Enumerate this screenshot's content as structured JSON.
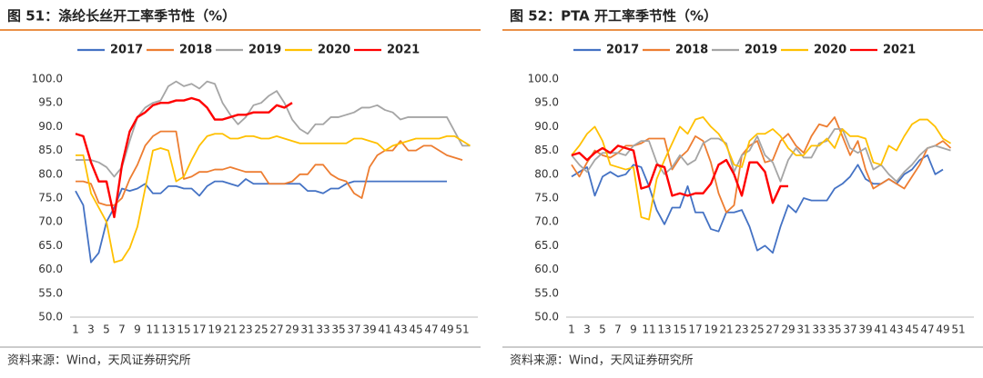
{
  "chart_data": [
    {
      "type": "line",
      "title": "图 51：涤纶长丝开工率季节性（%）",
      "source": "资料来源：Wind，天风证券研究所",
      "categories": [
        1,
        null,
        3,
        null,
        5,
        null,
        7,
        null,
        9,
        null,
        11,
        null,
        13,
        null,
        15,
        null,
        17,
        null,
        19,
        null,
        21,
        null,
        23,
        null,
        25,
        null,
        27,
        null,
        29,
        null,
        31,
        null,
        33,
        null,
        35,
        null,
        37,
        null,
        39,
        null,
        41,
        null,
        43,
        null,
        45,
        null,
        47,
        null,
        49,
        null,
        51,
        null
      ],
      "ylim": [
        50,
        100
      ],
      "yticks": [
        {
          "value": 50,
          "label": "50.0"
        },
        {
          "value": 55,
          "label": "55.0"
        },
        {
          "value": 60,
          "label": "60.0"
        },
        {
          "value": 65,
          "label": "65.0"
        },
        {
          "value": 70,
          "label": "70.0"
        },
        {
          "value": 75,
          "label": "75.0"
        },
        {
          "value": 80,
          "label": "80.0"
        },
        {
          "value": 85,
          "label": "85.0"
        },
        {
          "value": 90,
          "label": "90.0"
        },
        {
          "value": 95,
          "label": "95.0"
        },
        {
          "value": 100,
          "label": "100.0"
        }
      ],
      "series": [
        {
          "name": "2017",
          "color": "#4472c4",
          "values": [
            76.5,
            73.5,
            61.5,
            63.5,
            70,
            73,
            77,
            76.5,
            77,
            78,
            76,
            76,
            77.5,
            77.5,
            77,
            77,
            75.5,
            77.5,
            78.5,
            78.5,
            78,
            77.5,
            79,
            78,
            78,
            78,
            78,
            78,
            78,
            78,
            76.5,
            76.5,
            76,
            77,
            77,
            78,
            78.5,
            78.5,
            78.5,
            78.5,
            78.5,
            78.5,
            78.5,
            78.5,
            78.5,
            78.5,
            78.5,
            78.5,
            78.5,
            null,
            null,
            null
          ]
        },
        {
          "name": "2018",
          "color": "#ed7d31",
          "values": [
            78.5,
            78.5,
            78,
            74,
            73.5,
            73.5,
            75,
            79,
            82,
            86,
            88,
            89,
            89,
            89,
            79,
            79.5,
            80.5,
            80.5,
            81,
            81,
            81.5,
            81,
            80.5,
            80.5,
            80.5,
            78,
            78,
            78,
            78.5,
            80,
            80,
            82,
            82,
            80,
            79,
            78.5,
            76,
            75,
            81.5,
            84,
            85,
            85,
            87,
            85,
            85,
            86,
            86,
            85,
            84,
            83.5,
            83,
            null
          ]
        },
        {
          "name": "2019",
          "color": "#a5a5a5",
          "values": [
            83,
            83,
            83,
            82.5,
            81.5,
            79.5,
            81.5,
            87,
            92,
            94,
            95,
            95.5,
            98.5,
            99.5,
            98.5,
            99,
            98,
            99.5,
            99,
            95,
            92.5,
            90.5,
            92,
            94.5,
            95,
            96.5,
            97.5,
            95,
            91.5,
            89.5,
            88.5,
            90.5,
            90.5,
            92,
            92,
            92.5,
            93,
            94,
            94,
            94.5,
            93.5,
            93,
            91.5,
            92,
            92,
            92,
            92,
            92,
            92,
            89,
            86,
            86
          ]
        },
        {
          "name": "2020",
          "color": "#ffc000",
          "values": [
            84,
            84,
            76,
            73,
            70,
            61.5,
            62,
            64.5,
            69,
            77,
            85,
            85.5,
            85,
            78.5,
            79.5,
            83,
            86,
            88,
            88.5,
            88.5,
            87.5,
            87.5,
            88,
            88,
            87.5,
            87.5,
            88,
            87.5,
            87,
            86.5,
            86.5,
            86.5,
            86.5,
            86.5,
            86.5,
            86.5,
            87.5,
            87.5,
            87,
            86.5,
            85,
            86,
            86.5,
            87,
            87.5,
            87.5,
            87.5,
            87.5,
            88,
            88,
            87,
            86
          ]
        },
        {
          "name": "2021",
          "color": "#ff0000",
          "values": [
            88.5,
            88,
            82.5,
            78.5,
            78.5,
            71,
            82,
            89,
            92,
            93,
            94.5,
            95,
            95,
            95.5,
            95.5,
            96,
            95.5,
            94,
            91.5,
            91.5,
            92,
            92.5,
            92.5,
            93,
            93,
            93,
            94.5,
            94,
            95,
            null,
            null,
            null,
            null,
            null,
            null,
            null,
            null,
            null,
            null,
            null,
            null,
            null,
            null,
            null,
            null,
            null,
            null,
            null,
            null,
            null,
            null,
            null
          ]
        }
      ]
    },
    {
      "type": "line",
      "title": "图 52：PTA 开工率季节性（%）",
      "source": "资料来源：Wind，天风证券研究所",
      "categories": [
        1,
        null,
        3,
        null,
        5,
        null,
        7,
        null,
        9,
        null,
        11,
        null,
        13,
        null,
        15,
        null,
        17,
        null,
        19,
        null,
        21,
        null,
        23,
        null,
        25,
        null,
        27,
        null,
        29,
        null,
        31,
        null,
        33,
        null,
        35,
        null,
        37,
        null,
        39,
        null,
        41,
        null,
        43,
        null,
        45,
        null,
        47,
        null,
        49,
        null,
        51,
        null
      ],
      "ylim": [
        50,
        100
      ],
      "yticks": [
        {
          "value": 50,
          "label": "50.0"
        },
        {
          "value": 55,
          "label": "55.0"
        },
        {
          "value": 60,
          "label": "60.0"
        },
        {
          "value": 65,
          "label": "65.0"
        },
        {
          "value": 70,
          "label": "70.0"
        },
        {
          "value": 75,
          "label": "75.0"
        },
        {
          "value": 80,
          "label": "80.0"
        },
        {
          "value": 85,
          "label": "85.0"
        },
        {
          "value": 90,
          "label": "90.0"
        },
        {
          "value": 95,
          "label": "95.0"
        },
        {
          "value": 100,
          "label": "100.0"
        }
      ],
      "series": [
        {
          "name": "2017",
          "color": "#4472c4",
          "values": [
            79.5,
            80.5,
            81.5,
            75.5,
            79.5,
            80.5,
            79.5,
            80,
            82,
            81.5,
            77.5,
            72.5,
            69.5,
            73,
            73,
            77.5,
            72,
            72,
            68.5,
            68,
            72,
            72,
            72.5,
            69,
            64,
            65,
            63.5,
            69,
            73.5,
            72,
            75,
            74.5,
            74.5,
            74.5,
            77,
            78,
            79.5,
            82,
            79,
            78,
            78,
            79,
            78,
            80,
            81,
            83,
            84,
            80,
            81,
            null,
            null,
            null
          ]
        },
        {
          "name": "2018",
          "color": "#ed7d31",
          "values": [
            82,
            79.5,
            82.5,
            85,
            84,
            83.5,
            84.5,
            86,
            86,
            86.5,
            87.5,
            87.5,
            87.5,
            81,
            83.5,
            85,
            88,
            87,
            82.5,
            76,
            72,
            73.5,
            84,
            86,
            87,
            82.5,
            83,
            87,
            88.5,
            86,
            84.5,
            88,
            90.5,
            90,
            92,
            88,
            84,
            87,
            81,
            77,
            78,
            79,
            78,
            77,
            79.5,
            82,
            85.5,
            86,
            87,
            85.5,
            null,
            null
          ]
        },
        {
          "name": "2019",
          "color": "#a5a5a5",
          "values": [
            84,
            82,
            80.5,
            83,
            84.5,
            84.5,
            84.5,
            84,
            86,
            87,
            87,
            82.5,
            80,
            81.5,
            84,
            82,
            83,
            86.5,
            87.5,
            87.5,
            86.5,
            80.5,
            84,
            85,
            88,
            84,
            82.5,
            78.5,
            83,
            85.5,
            83.5,
            83.5,
            86.5,
            87,
            89.5,
            89.5,
            85.5,
            84.5,
            85.5,
            81,
            82,
            80,
            78.5,
            80.5,
            82,
            84,
            85.5,
            86,
            85.5,
            85,
            null,
            null
          ]
        },
        {
          "name": "2020",
          "color": "#ffc000",
          "values": [
            84,
            86,
            88.5,
            90,
            87,
            82,
            81.5,
            81,
            81.5,
            71,
            70.5,
            79,
            83,
            86.5,
            90,
            88.5,
            91.5,
            92,
            90,
            88.5,
            86,
            82,
            81.5,
            87,
            88.5,
            88.5,
            89.5,
            88,
            85.5,
            84,
            84,
            86,
            86,
            87.5,
            85.5,
            89.5,
            88,
            88,
            87.5,
            82.5,
            82,
            86,
            85,
            88,
            90.5,
            91.5,
            91.5,
            90,
            87.5,
            86.5,
            null,
            null
          ]
        },
        {
          "name": "2021",
          "color": "#ff0000",
          "values": [
            84,
            84.5,
            83,
            84.5,
            85.5,
            84.5,
            86,
            85.5,
            85,
            77,
            77.5,
            82,
            81.5,
            75.5,
            76,
            75.5,
            76,
            76,
            78,
            82,
            83,
            80,
            75.5,
            82.5,
            82.5,
            80.5,
            74,
            77.5,
            77.5,
            null,
            null,
            null,
            null,
            null,
            null,
            null,
            null,
            null,
            null,
            null,
            null,
            null,
            null,
            null,
            null,
            null,
            null,
            null,
            null,
            null,
            null,
            null
          ]
        }
      ]
    }
  ]
}
